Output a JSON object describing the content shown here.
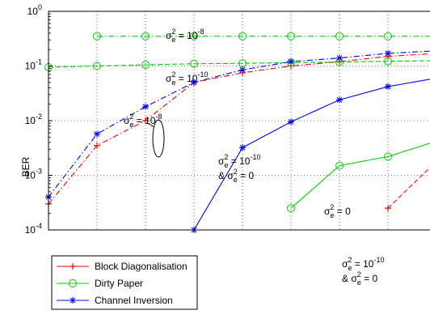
{
  "chart_data": {
    "type": "line",
    "ylabel": "BER",
    "yscale": "log",
    "ylim": [
      0.0001,
      1
    ],
    "xlim": [
      0,
      8
    ],
    "grid": "on",
    "legend_position": "bottom-left",
    "y_tick_labels": [
      {
        "value": 0.0001,
        "base": "10",
        "exp": "-4"
      },
      {
        "value": 0.001,
        "base": "10",
        "exp": "-3"
      },
      {
        "value": 0.01,
        "base": "10",
        "exp": "-2"
      },
      {
        "value": 0.1,
        "base": "10",
        "exp": "-1"
      },
      {
        "value": 1,
        "base": "10",
        "exp": "0"
      }
    ],
    "legend": [
      {
        "label": "Block Diagonalisation",
        "color": "#ff0000",
        "marker": "plus"
      },
      {
        "label": "Dirty Paper",
        "color": "#00cc00",
        "marker": "circle"
      },
      {
        "label": "Channel Inversion",
        "color": "#0000ff",
        "marker": "star"
      }
    ],
    "series": [
      {
        "name": "Block Diagonalisation",
        "color": "#ff0000",
        "marker": "plus",
        "dash": "dashdot",
        "x": [
          0,
          1,
          2,
          3,
          4,
          5,
          6,
          7,
          8
        ],
        "y": [
          0.0003,
          0.0035,
          0.01,
          0.05,
          0.075,
          0.1,
          0.12,
          0.15,
          0.17
        ]
      },
      {
        "name": "Block Diagonalisation",
        "color": "#ff0000",
        "marker": "plus",
        "dash": "dashed",
        "x": [
          7,
          8
        ],
        "y": [
          0.00025,
          0.0018
        ]
      },
      {
        "name": "Dirty Paper",
        "color": "#00cc00",
        "marker": "circle",
        "dash": "dashdot",
        "x": [
          1,
          2,
          3,
          4,
          5,
          6,
          7,
          8
        ],
        "y": [
          0.35,
          0.35,
          0.35,
          0.35,
          0.35,
          0.35,
          0.35,
          0.35
        ]
      },
      {
        "name": "Dirty Paper",
        "color": "#00cc00",
        "marker": "circle",
        "dash": "dashed",
        "x": [
          0,
          1,
          2,
          3,
          4,
          5,
          6,
          7,
          8
        ],
        "y": [
          0.095,
          0.1,
          0.105,
          0.11,
          0.112,
          0.115,
          0.118,
          0.122,
          0.125
        ]
      },
      {
        "name": "Dirty Paper",
        "color": "#00cc00",
        "marker": "circle",
        "dash": "solid",
        "x": [
          5,
          6,
          7,
          8
        ],
        "y": [
          0.00025,
          0.0015,
          0.0022,
          0.0042
        ]
      },
      {
        "name": "Channel Inversion",
        "color": "#0000ff",
        "marker": "star",
        "dash": "dashdot",
        "x": [
          0,
          1,
          2,
          3,
          4,
          5,
          6,
          7,
          8
        ],
        "y": [
          0.0004,
          0.0057,
          0.018,
          0.05,
          0.085,
          0.12,
          0.14,
          0.17,
          0.19
        ]
      },
      {
        "name": "Channel Inversion",
        "color": "#0000ff",
        "marker": "star",
        "dash": "solid",
        "x": [
          3,
          4,
          5,
          6,
          7,
          8
        ],
        "y": [
          0.0001,
          0.0032,
          0.0095,
          0.024,
          0.042,
          0.06
        ]
      }
    ],
    "annotations": [
      {
        "id": "a1",
        "line1": "σ",
        "sub": "e",
        "sup": "2",
        "eq": " = 10",
        "exp": "-8"
      },
      {
        "id": "a2",
        "line1": "σ",
        "sub": "e",
        "sup": "2",
        "eq": " = 10",
        "exp": "-10"
      },
      {
        "id": "a3",
        "line1": "σ",
        "sub": "e",
        "sup": "2",
        "eq": " = 10",
        "exp": "-8"
      },
      {
        "id": "a4",
        "line1": "σ",
        "sub": "e",
        "sup": "2",
        "eq": " = 10",
        "exp": "-10",
        "line2_prefix": "& σ",
        "line2_sub": "e",
        "line2_sup": "2",
        "line2_eq": " = 0"
      },
      {
        "id": "a5",
        "line1": "σ",
        "sub": "e",
        "sup": "2",
        "eq": " = 0"
      },
      {
        "id": "a6",
        "line1": "σ",
        "sub": "e",
        "sup": "2",
        "eq": " = 10",
        "exp": "-10",
        "line2_prefix": "& σ",
        "line2_sub": "e",
        "line2_sup": "2",
        "line2_eq": " = 0"
      }
    ]
  }
}
